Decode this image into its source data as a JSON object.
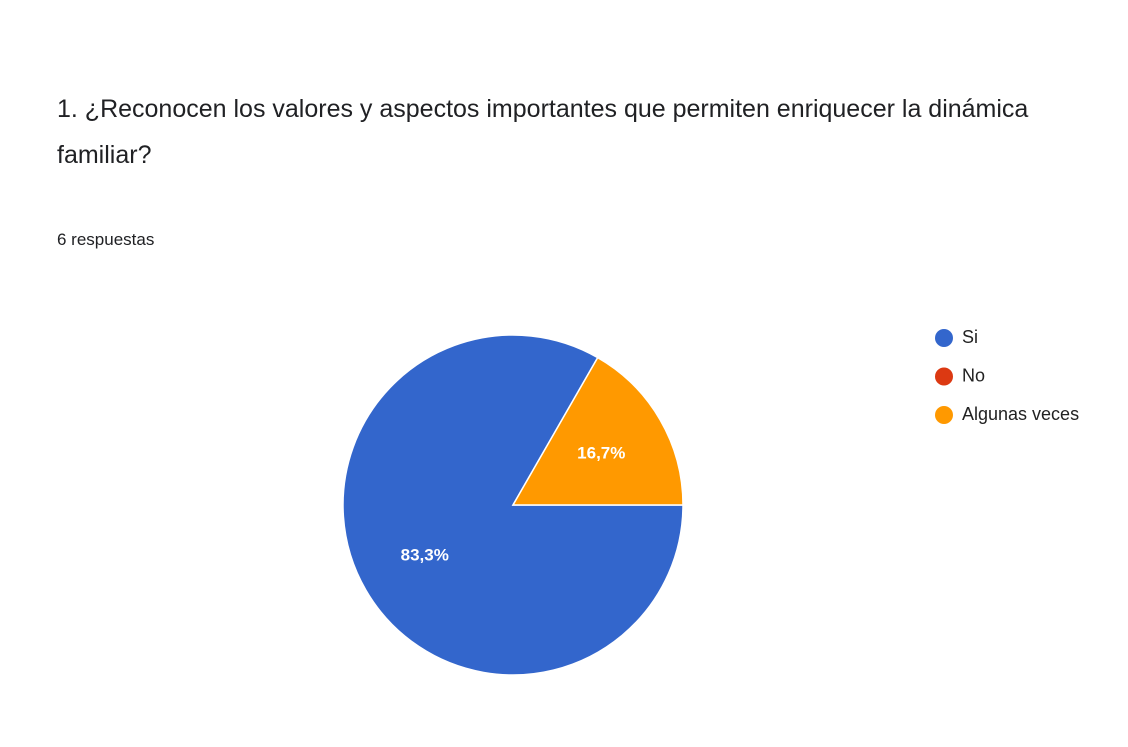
{
  "chart_data": {
    "type": "pie",
    "title": "1. ¿Reconocen los valores y aspectos importantes que permiten enriquecer la dinámica familiar?",
    "subtitle": "6 respuestas",
    "categories": [
      "Si",
      "No",
      "Algunas veces"
    ],
    "values": [
      83.3,
      0,
      16.7
    ],
    "value_labels": [
      "83,3%",
      null,
      "16,7%"
    ],
    "colors": [
      "#3366cc",
      "#dc3912",
      "#ff9900"
    ],
    "legend": "right"
  }
}
